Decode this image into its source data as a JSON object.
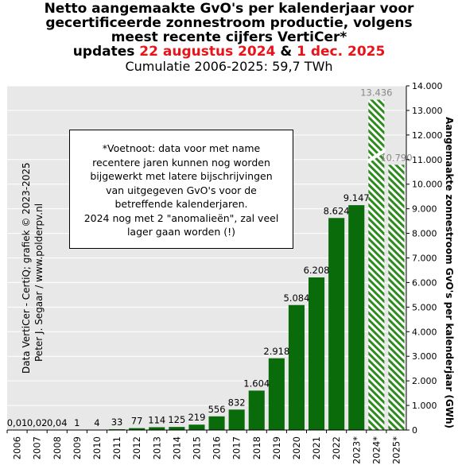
{
  "title": {
    "line1": "Netto aangemaakte GvO's per kalenderjaar voor",
    "line2": "gecertificeerde zonnestroom productie, volgens",
    "line3": "meest recente cijfers VertiCer*",
    "updates_prefix": "updates ",
    "update_date_1": "22 augustus 2024",
    "updates_amp": " & ",
    "update_date_2": "1 dec. 2025",
    "subtitle": "Cumulatie 2006-2025:  59,7 TWh"
  },
  "footnote": {
    "lines": [
      "*Voetnoot: data voor met name",
      "recentere jaren kunnen nog worden",
      "bijgewerkt met latere bijschrijvingen",
      "van uitgegeven GvO's  voor de",
      "betreffende kalenderjaren.",
      "2024 nog met 2 \"anomalieën\",  zal veel",
      "lager gaan worden (!)"
    ]
  },
  "credit": {
    "line1": "Data VertiCer - CertiQ;  grafiek © 2023-2025",
    "line2": "Peter J. Segaar  /  www.polderpv.nl"
  },
  "chart_data": {
    "type": "bar",
    "categories": [
      "2006",
      "2007",
      "2008",
      "2009",
      "2010",
      "2011",
      "2012",
      "2013",
      "2014",
      "2015",
      "2016",
      "2017",
      "2018",
      "2019",
      "2020",
      "2021",
      "2022",
      "2023*",
      "2024*",
      "2025*"
    ],
    "values": [
      0.01,
      0.02,
      0.04,
      1,
      4,
      33,
      77,
      114,
      125,
      219,
      556,
      832,
      1604,
      2918,
      5084,
      6208,
      8624,
      9147,
      13436,
      10790
    ],
    "value_labels": [
      "0,01",
      "0,02",
      "0,04",
      "1",
      "4",
      "33",
      "77",
      "114",
      "125",
      "219",
      "556",
      "832",
      "1.604",
      "2.918",
      "5.084",
      "6.208",
      "8.624",
      "9.147",
      "13.436",
      "10.790"
    ],
    "hatched_categories": [
      "2024*",
      "2025*"
    ],
    "bar_color": "#0a6b0a",
    "hatch_color": "#2e8b1e",
    "hatched_label_color": "#888888",
    "plot_background": "#e8e8e8",
    "ylim": [
      0,
      14000
    ],
    "ytick_values": [
      0,
      1000,
      2000,
      3000,
      4000,
      5000,
      6000,
      7000,
      8000,
      9000,
      10000,
      11000,
      12000,
      13000,
      14000
    ],
    "ytick_labels": [
      "0",
      "1.000",
      "2.000",
      "3.000",
      "4.000",
      "5.000",
      "6.000",
      "7.000",
      "8.000",
      "9.000",
      "10.000",
      "11.000",
      "12.000",
      "13.000",
      "14.000"
    ],
    "ylabel": "Aangemaakte zonnestroom GvO's per kalenderjaar (GWh)",
    "y_axis_side": "right",
    "grid": true
  }
}
